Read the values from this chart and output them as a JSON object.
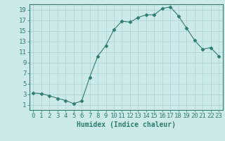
{
  "xlabel": "Humidex (Indice chaleur)",
  "x": [
    0,
    1,
    2,
    3,
    4,
    5,
    6,
    7,
    8,
    9,
    10,
    11,
    12,
    13,
    14,
    15,
    16,
    17,
    18,
    19,
    20,
    21,
    22,
    23
  ],
  "y": [
    3.2,
    3.1,
    2.7,
    2.2,
    1.8,
    1.2,
    1.7,
    6.2,
    10.2,
    12.2,
    15.2,
    16.8,
    16.6,
    17.5,
    18.0,
    18.0,
    19.2,
    19.5,
    17.8,
    15.5,
    13.2,
    11.5,
    11.8,
    10.2
  ],
  "line_color": "#2e7d6e",
  "marker": "D",
  "marker_size": 2.5,
  "bg_color": "#cceaea",
  "grid_color": "#aacfcf",
  "tick_color": "#2e7d6e",
  "label_color": "#2e7d6e",
  "xlim": [
    -0.5,
    23.5
  ],
  "ylim": [
    0,
    20
  ],
  "yticks": [
    1,
    3,
    5,
    7,
    9,
    11,
    13,
    15,
    17,
    19
  ],
  "xticks": [
    0,
    1,
    2,
    3,
    4,
    5,
    6,
    7,
    8,
    9,
    10,
    11,
    12,
    13,
    14,
    15,
    16,
    17,
    18,
    19,
    20,
    21,
    22,
    23
  ],
  "font_size": 6.5
}
